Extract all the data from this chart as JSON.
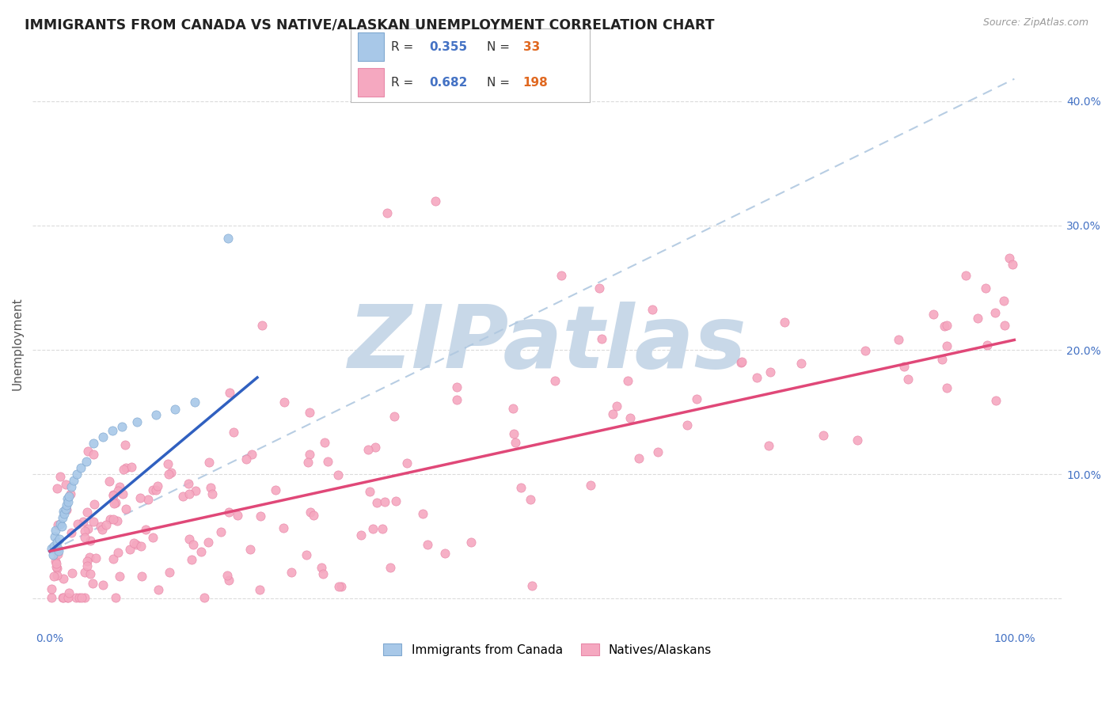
{
  "title": "IMMIGRANTS FROM CANADA VS NATIVE/ALASKAN UNEMPLOYMENT CORRELATION CHART",
  "source": "Source: ZipAtlas.com",
  "ylabel": "Unemployment",
  "watermark": "ZIPatlas",
  "blue_R": "0.355",
  "blue_N": "33",
  "pink_R": "0.682",
  "pink_N": "198",
  "blue_scatter_color": "#a8c8e8",
  "pink_scatter_color": "#f5a8c0",
  "blue_line_color": "#3060c0",
  "pink_line_color": "#e04878",
  "dash_line_color": "#b0c8e0",
  "legend_blue_label": "Immigrants from Canada",
  "legend_pink_label": "Natives/Alaskans",
  "background_color": "#ffffff",
  "grid_color": "#d8d8d8",
  "title_color": "#222222",
  "source_color": "#999999",
  "watermark_color": "#c8d8e8",
  "label_color": "#4472c4",
  "N_color": "#e06820",
  "blue_scatter_edge": "#80a8d0",
  "pink_scatter_edge": "#e888a8"
}
